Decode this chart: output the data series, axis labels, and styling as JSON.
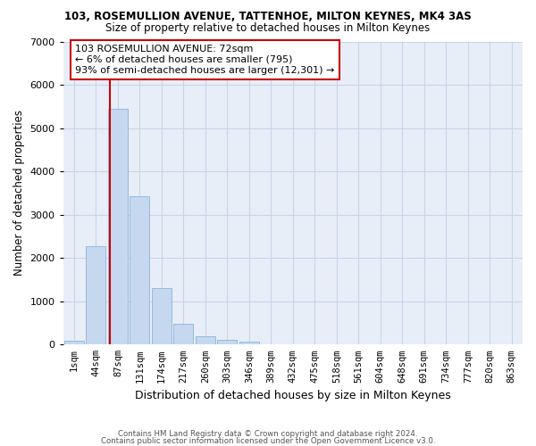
{
  "title1": "103, ROSEMULLION AVENUE, TATTENHOE, MILTON KEYNES, MK4 3AS",
  "title2": "Size of property relative to detached houses in Milton Keynes",
  "xlabel": "Distribution of detached houses by size in Milton Keynes",
  "ylabel": "Number of detached properties",
  "categories": [
    "1sqm",
    "44sqm",
    "87sqm",
    "131sqm",
    "174sqm",
    "217sqm",
    "260sqm",
    "303sqm",
    "346sqm",
    "389sqm",
    "432sqm",
    "475sqm",
    "518sqm",
    "561sqm",
    "604sqm",
    "648sqm",
    "691sqm",
    "734sqm",
    "777sqm",
    "820sqm",
    "863sqm"
  ],
  "bar_values": [
    80,
    2270,
    5450,
    3420,
    1310,
    480,
    200,
    110,
    70,
    0,
    0,
    0,
    0,
    0,
    0,
    0,
    0,
    0,
    0,
    0,
    0
  ],
  "bar_color": "#c5d8f0",
  "bar_edge_color": "#8ab4d8",
  "grid_color": "#c8d4e8",
  "background_color": "#e8eef8",
  "vline_color": "#cc0000",
  "annotation_text": "103 ROSEMULLION AVENUE: 72sqm\n← 6% of detached houses are smaller (795)\n93% of semi-detached houses are larger (12,301) →",
  "annotation_box_color": "#ffffff",
  "annotation_box_edge_color": "#cc0000",
  "ylim": [
    0,
    7000
  ],
  "yticks": [
    0,
    1000,
    2000,
    3000,
    4000,
    5000,
    6000,
    7000
  ],
  "footer1": "Contains HM Land Registry data © Crown copyright and database right 2024.",
  "footer2": "Contains public sector information licensed under the Open Government Licence v3.0."
}
